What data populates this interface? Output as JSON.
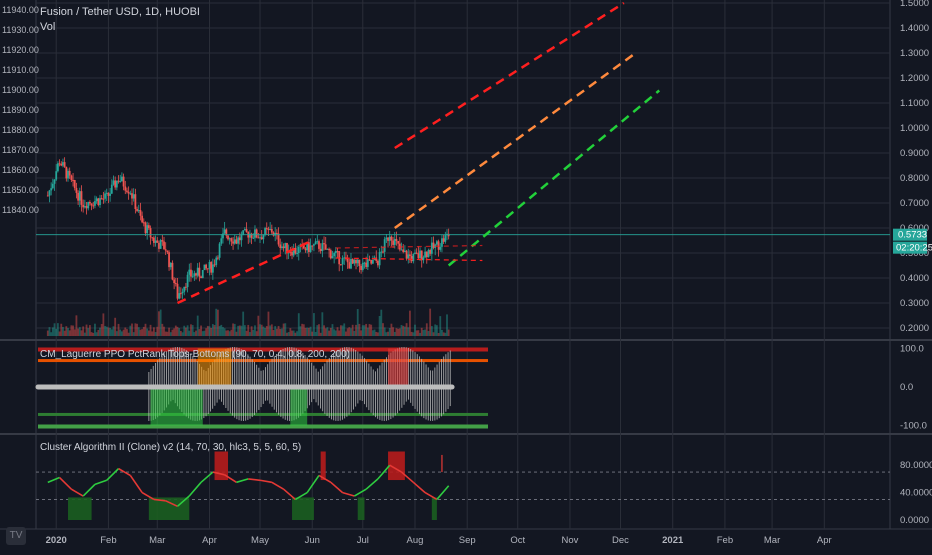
{
  "header": {
    "title": "Fusion / Tether USD, 1D, HUOBI",
    "volume_label": "Vol"
  },
  "price_axis_left": {
    "ticks": [
      11940,
      11930,
      11920,
      11910,
      11900,
      11890,
      11880,
      11870,
      11860,
      11850,
      11840
    ],
    "tick_labels": [
      "11940.00",
      "11930.00",
      "11920.00",
      "11910.00",
      "11900.00",
      "11890.00",
      "11880.00",
      "11870.00",
      "11860.00",
      "11850.00",
      "11840.00"
    ]
  },
  "price_axis_right": {
    "ticks": [
      1.5,
      1.4,
      1.3,
      1.2,
      1.1,
      1.0,
      0.9,
      0.8,
      0.7,
      0.6,
      0.5,
      0.4,
      0.3,
      0.2
    ],
    "tick_labels": [
      "1.5000",
      "1.4000",
      "1.3000",
      "1.2000",
      "1.1000",
      "1.0000",
      "0.9000",
      "0.8000",
      "0.7000",
      "0.6000",
      "0.5000",
      "0.4000",
      "0.3000",
      "0.2000"
    ],
    "last_price_label": "0.5733",
    "countdown_label": "02:20:25"
  },
  "time_axis": {
    "labels": [
      "2020",
      "Feb",
      "Mar",
      "Apr",
      "May",
      "Jun",
      "Jul",
      "Aug",
      "Sep",
      "Oct",
      "Nov",
      "Dec",
      "2021",
      "Feb",
      "Mar",
      "Apr"
    ]
  },
  "panel1": {
    "label": "CM_Laguerre PPO PctRank Tops-Bottoms (90, 70, 0.4, 0.8, 200, 200)",
    "axis_labels": [
      "100.0",
      "0.0",
      "-100.0"
    ]
  },
  "panel2": {
    "label": "Cluster Algorithm II (Clone) v2 (14, 70, 30, hlc3, 5, 5, 60, 5)",
    "axis_labels": [
      "80.0000",
      "40.0000",
      "0.0000"
    ]
  },
  "colors": {
    "background": "#131722",
    "grid": "#2a2e39",
    "candle_up": "#26a69a",
    "candle_down": "#ef5350",
    "channel_red": "#ff1f1f",
    "channel_orange": "#ff8a3d",
    "channel_green": "#22d13a",
    "oscillator_green": "#2ecc40",
    "oscillator_red": "#e53935",
    "last_price": "#26a69a"
  },
  "chart_data": {
    "type": "candlestick",
    "series_interval": "1D",
    "y_axis_scale": "price",
    "close_path": [
      {
        "date": "2019-12-27",
        "close": 0.73
      },
      {
        "date": "2020-01-03",
        "close": 0.87
      },
      {
        "date": "2020-01-10",
        "close": 0.78
      },
      {
        "date": "2020-01-17",
        "close": 0.7
      },
      {
        "date": "2020-01-24",
        "close": 0.71
      },
      {
        "date": "2020-01-31",
        "close": 0.72
      },
      {
        "date": "2020-02-07",
        "close": 0.8
      },
      {
        "date": "2020-02-14",
        "close": 0.75
      },
      {
        "date": "2020-02-21",
        "close": 0.62
      },
      {
        "date": "2020-02-28",
        "close": 0.55
      },
      {
        "date": "2020-03-06",
        "close": 0.52
      },
      {
        "date": "2020-03-13",
        "close": 0.33
      },
      {
        "date": "2020-03-20",
        "close": 0.41
      },
      {
        "date": "2020-03-27",
        "close": 0.42
      },
      {
        "date": "2020-04-03",
        "close": 0.45
      },
      {
        "date": "2020-04-10",
        "close": 0.58
      },
      {
        "date": "2020-04-17",
        "close": 0.55
      },
      {
        "date": "2020-04-24",
        "close": 0.58
      },
      {
        "date": "2020-05-01",
        "close": 0.57
      },
      {
        "date": "2020-05-08",
        "close": 0.59
      },
      {
        "date": "2020-05-15",
        "close": 0.52
      },
      {
        "date": "2020-05-22",
        "close": 0.51
      },
      {
        "date": "2020-05-29",
        "close": 0.52
      },
      {
        "date": "2020-06-05",
        "close": 0.53
      },
      {
        "date": "2020-06-12",
        "close": 0.5
      },
      {
        "date": "2020-06-19",
        "close": 0.47
      },
      {
        "date": "2020-06-26",
        "close": 0.45
      },
      {
        "date": "2020-07-03",
        "close": 0.45
      },
      {
        "date": "2020-07-10",
        "close": 0.47
      },
      {
        "date": "2020-07-17",
        "close": 0.58
      },
      {
        "date": "2020-07-24",
        "close": 0.5
      },
      {
        "date": "2020-07-31",
        "close": 0.48
      },
      {
        "date": "2020-08-07",
        "close": 0.5
      },
      {
        "date": "2020-08-14",
        "close": 0.53
      },
      {
        "date": "2020-08-21",
        "close": 0.5733
      }
    ],
    "annotations": [
      {
        "name": "channel-upper-red",
        "color": "red",
        "from": {
          "date": "2020-07-20",
          "price": 0.92
        },
        "to": {
          "date": "2020-12-03",
          "price": 1.5
        }
      },
      {
        "name": "channel-middle-orange",
        "color": "orange",
        "from": {
          "date": "2020-07-20",
          "price": 0.6
        },
        "to": {
          "date": "2020-12-10",
          "price": 1.3
        }
      },
      {
        "name": "channel-lower-green",
        "color": "green",
        "from": {
          "date": "2020-08-21",
          "price": 0.45
        },
        "to": {
          "date": "2020-12-24",
          "price": 1.15
        }
      },
      {
        "name": "trend-line-red",
        "color": "red",
        "from": {
          "date": "2020-03-13",
          "price": 0.3
        },
        "to": {
          "date": "2020-06-01",
          "price": 0.55
        }
      }
    ],
    "panel1_series": {
      "range": [
        -100,
        100
      ],
      "levels": [
        100,
        70,
        0,
        -70,
        -100
      ]
    },
    "panel2_series": {
      "range": [
        0,
        100
      ],
      "levels": [
        70,
        30
      ],
      "line": [
        {
          "date": "2019-12-27",
          "value": 55
        },
        {
          "date": "2020-01-03",
          "value": 62
        },
        {
          "date": "2020-01-10",
          "value": 45
        },
        {
          "date": "2020-01-17",
          "value": 35
        },
        {
          "date": "2020-01-24",
          "value": 52
        },
        {
          "date": "2020-01-31",
          "value": 58
        },
        {
          "date": "2020-02-07",
          "value": 75
        },
        {
          "date": "2020-02-14",
          "value": 65
        },
        {
          "date": "2020-02-21",
          "value": 40
        },
        {
          "date": "2020-02-28",
          "value": 30
        },
        {
          "date": "2020-03-06",
          "value": 28
        },
        {
          "date": "2020-03-13",
          "value": 20
        },
        {
          "date": "2020-03-20",
          "value": 35
        },
        {
          "date": "2020-03-27",
          "value": 55
        },
        {
          "date": "2020-04-03",
          "value": 70
        },
        {
          "date": "2020-04-10",
          "value": 66
        },
        {
          "date": "2020-04-17",
          "value": 55
        },
        {
          "date": "2020-04-24",
          "value": 60
        },
        {
          "date": "2020-05-01",
          "value": 58
        },
        {
          "date": "2020-05-08",
          "value": 55
        },
        {
          "date": "2020-05-15",
          "value": 45
        },
        {
          "date": "2020-05-22",
          "value": 30
        },
        {
          "date": "2020-05-29",
          "value": 40
        },
        {
          "date": "2020-06-05",
          "value": 65
        },
        {
          "date": "2020-06-12",
          "value": 55
        },
        {
          "date": "2020-06-19",
          "value": 40
        },
        {
          "date": "2020-06-26",
          "value": 35
        },
        {
          "date": "2020-07-03",
          "value": 45
        },
        {
          "date": "2020-07-10",
          "value": 60
        },
        {
          "date": "2020-07-17",
          "value": 80
        },
        {
          "date": "2020-07-24",
          "value": 70
        },
        {
          "date": "2020-07-31",
          "value": 55
        },
        {
          "date": "2020-08-07",
          "value": 40
        },
        {
          "date": "2020-08-14",
          "value": 30
        },
        {
          "date": "2020-08-21",
          "value": 50
        }
      ]
    }
  }
}
